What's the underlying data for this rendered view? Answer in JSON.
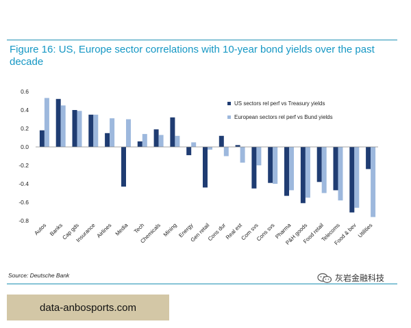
{
  "title": "Figure 16: US, Europe sector correlations with 10-year bond yields over the past decade",
  "source": "Source: Deutsche Bank",
  "watermark": "灰岩金融科技",
  "footer": "data-anbosports.com",
  "colors": {
    "title": "#1597c4",
    "us": "#1f3c72",
    "europe": "#9db8dd",
    "footer_bg": "#d3c7a6"
  },
  "chart_data": {
    "type": "bar",
    "categories": [
      "Autos",
      "Banks",
      "Cap gds",
      "Insurance",
      "Airlines",
      "Media",
      "Tech",
      "Chemicals",
      "Mining",
      "Energy",
      "Gen retail",
      "Cons dur",
      "Real est",
      "Com svs",
      "Cons svs",
      "Pharma",
      "P&H goods",
      "Food retail",
      "Telecoms",
      "Food & bev",
      "Utilities"
    ],
    "series": [
      {
        "name": "US sectors rel perf vs Treasury yields",
        "color": "#1f3c72",
        "values": [
          0.18,
          0.52,
          0.4,
          0.35,
          0.15,
          -0.43,
          0.06,
          0.19,
          0.32,
          -0.09,
          -0.44,
          0.12,
          0.02,
          -0.45,
          -0.39,
          -0.53,
          -0.61,
          -0.38,
          -0.47,
          -0.71,
          -0.24
        ]
      },
      {
        "name": "European sectors rel perf vs Bund yields",
        "color": "#9db8dd",
        "values": [
          0.53,
          0.45,
          0.39,
          0.35,
          0.31,
          0.3,
          0.14,
          0.13,
          0.12,
          0.05,
          -0.03,
          -0.1,
          -0.17,
          -0.2,
          -0.4,
          -0.47,
          -0.55,
          -0.5,
          -0.58,
          -0.66,
          -0.76
        ]
      }
    ],
    "yticks": [
      "0.6",
      "0.4",
      "0.2",
      "0.0",
      "-0.2",
      "-0.4",
      "-0.6",
      "-0.8"
    ],
    "ylim": [
      -0.8,
      0.6
    ],
    "legend_position": "top-right",
    "grid": false
  }
}
